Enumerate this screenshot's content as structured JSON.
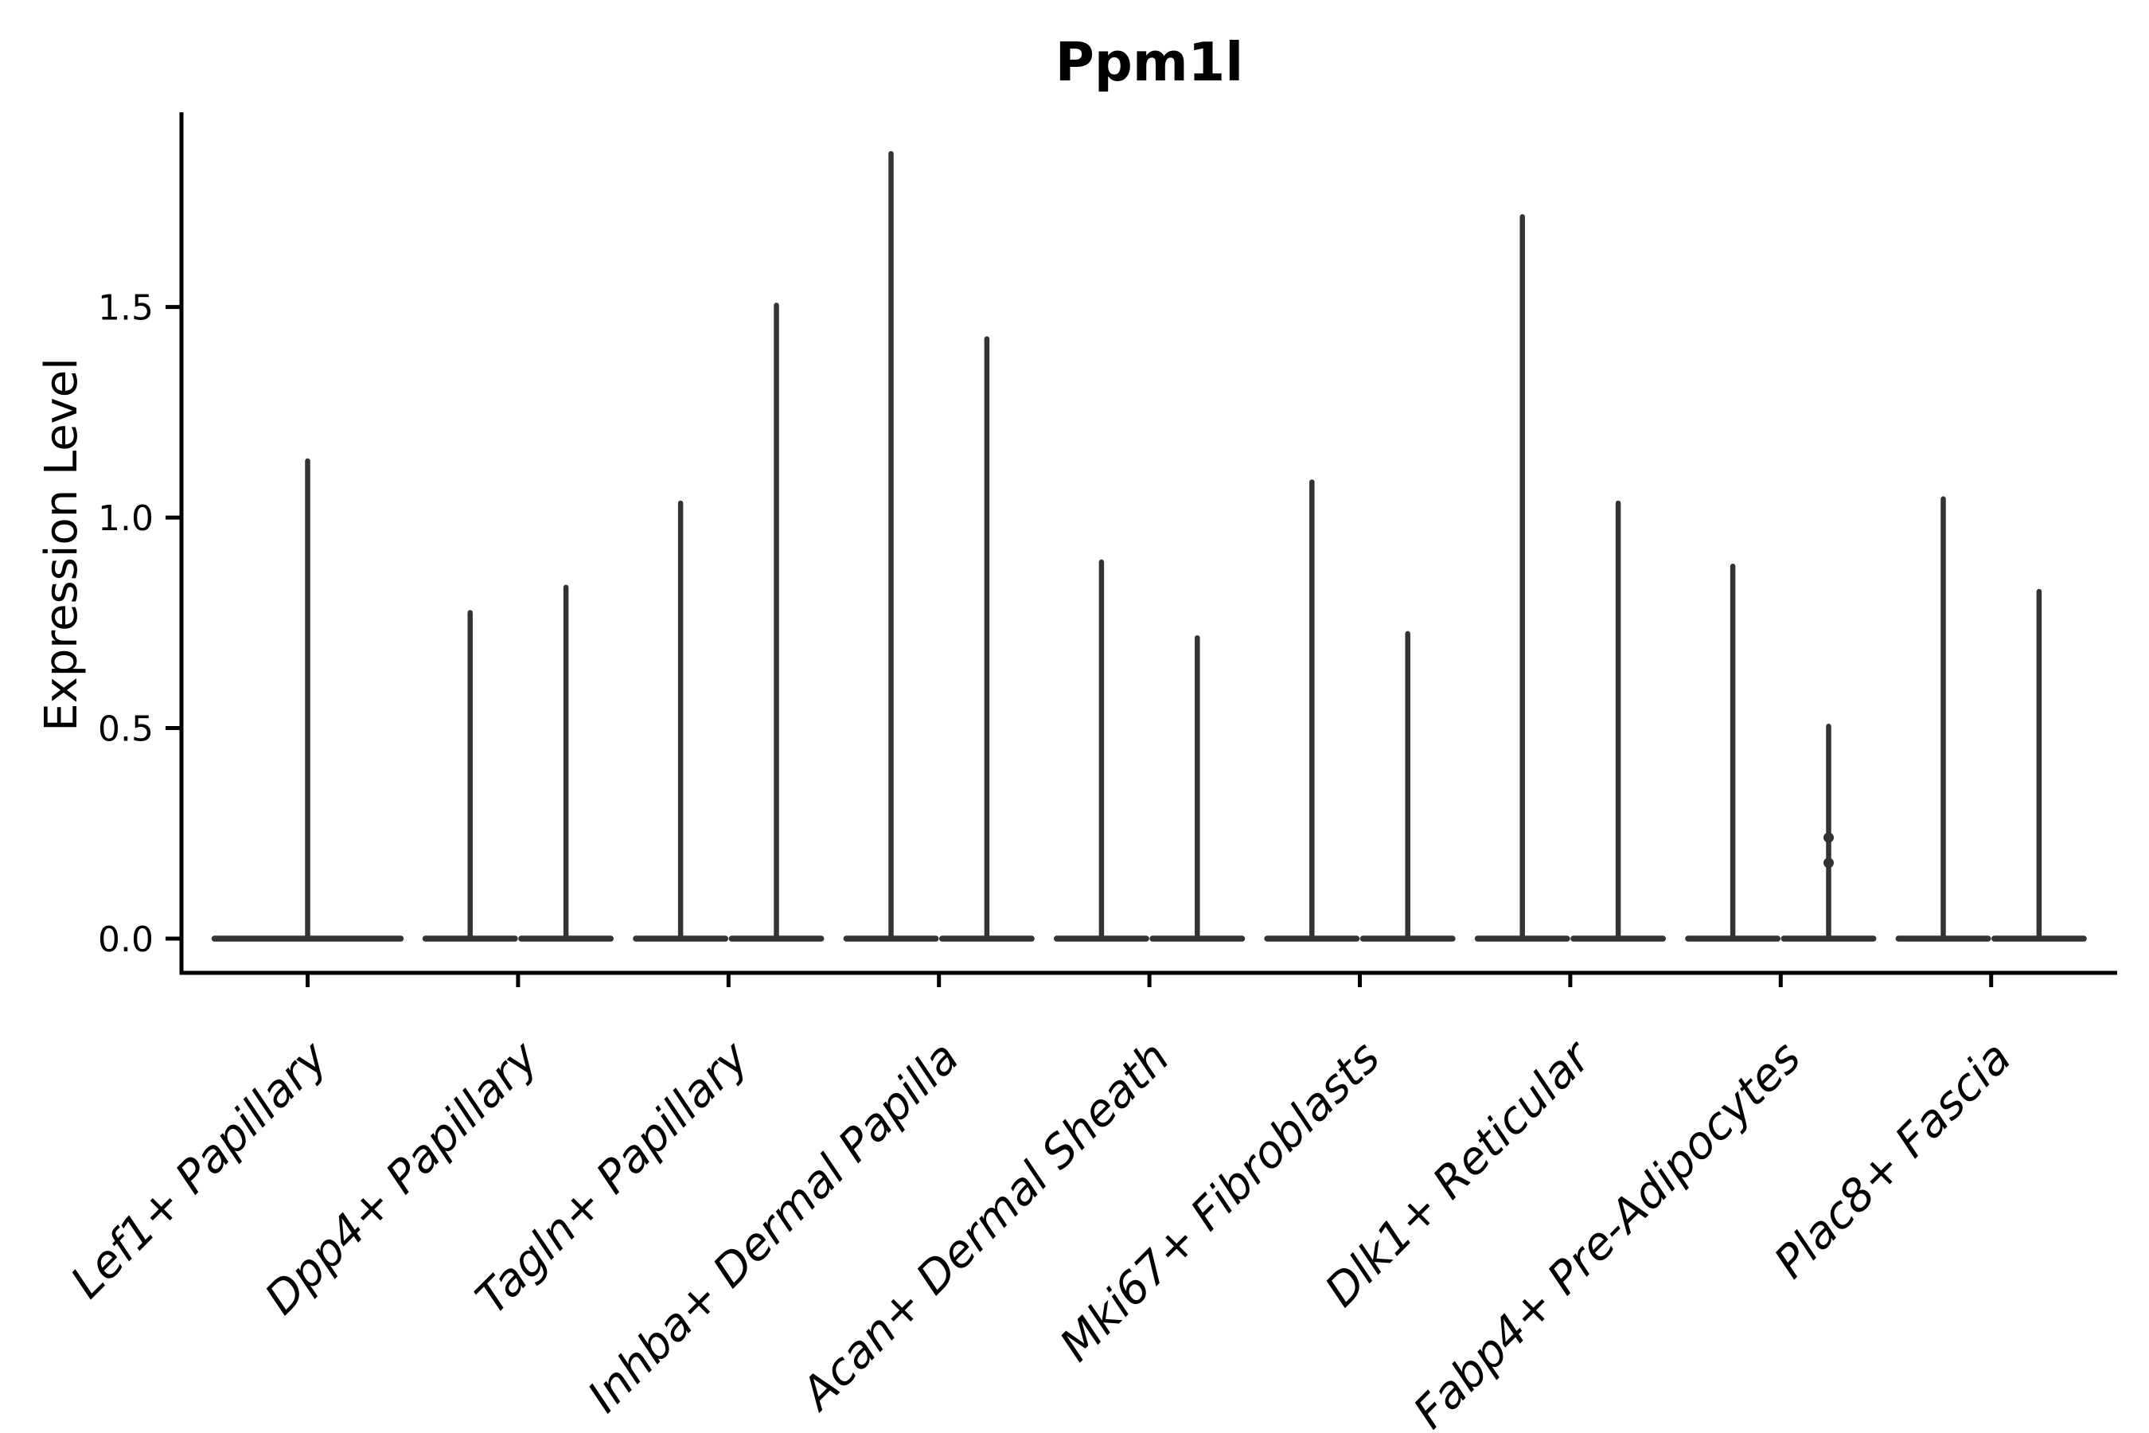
{
  "title": "Ppm1l",
  "chart_data": {
    "type": "violin",
    "title": "Ppm1l",
    "ylabel": "Expression Level",
    "ylim": [
      -0.08,
      1.96
    ],
    "grid": false,
    "legend": "none",
    "line_color": "#333333",
    "axis_color": "#000000",
    "yticks": [
      {
        "value": 0.0,
        "label": "0.0"
      },
      {
        "value": 0.5,
        "label": "0.5"
      },
      {
        "value": 1.0,
        "label": "1.0"
      },
      {
        "value": 1.5,
        "label": "1.5"
      }
    ],
    "categories": [
      {
        "label": "Lef1+ Papillary",
        "violin_max": [
          1.14
        ]
      },
      {
        "label": "Dpp4+ Papillary",
        "violin_max": [
          0.78,
          0.84
        ]
      },
      {
        "label": "Tagln+ Papillary",
        "violin_max": [
          1.04,
          1.51
        ]
      },
      {
        "label": "Inhba+ Dermal Papilla",
        "violin_max": [
          1.87,
          1.43
        ]
      },
      {
        "label": "Acan+ Dermal Sheath",
        "violin_max": [
          0.9,
          0.72
        ]
      },
      {
        "label": "Mki67+ Fibroblasts",
        "violin_max": [
          1.09,
          0.73
        ]
      },
      {
        "label": "Dlk1+ Reticular",
        "violin_max": [
          1.72,
          1.04
        ]
      },
      {
        "label": "Fabp4+ Pre-Adipocytes",
        "violin_max": [
          0.89,
          0.51
        ],
        "bumps": [
          {
            "violin": 1,
            "values": [
              0.24,
              0.18
            ]
          }
        ]
      },
      {
        "label": "Plac8+ Fascia",
        "violin_max": [
          1.05,
          0.83
        ]
      }
    ]
  }
}
